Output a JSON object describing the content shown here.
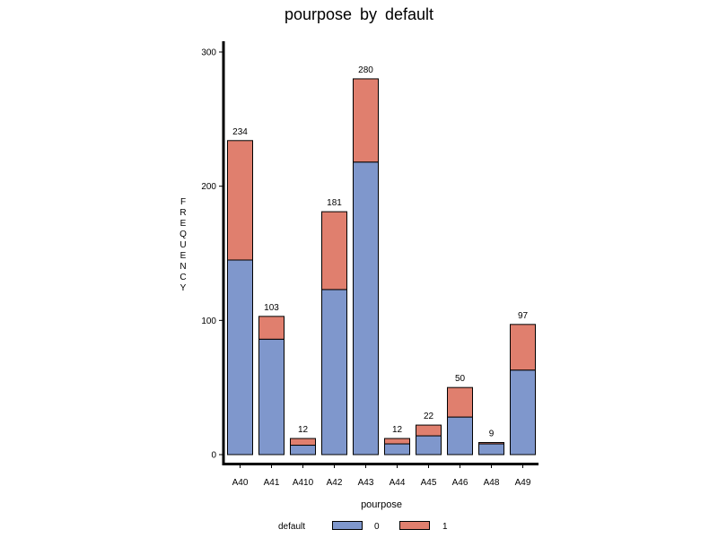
{
  "chart_data": {
    "type": "bar",
    "stacked": true,
    "title": "pourpose by default",
    "xlabel": "pourpose",
    "ylabel": "FREQUENCY",
    "ylim": [
      0,
      300
    ],
    "yticks": [
      0,
      100,
      200,
      300
    ],
    "categories": [
      "A40",
      "A41",
      "A410",
      "A42",
      "A43",
      "A44",
      "A45",
      "A46",
      "A48",
      "A49"
    ],
    "series": [
      {
        "name": "0",
        "color": "#7f97cc",
        "values": [
          145,
          86,
          7,
          123,
          218,
          8,
          14,
          28,
          8,
          63
        ]
      },
      {
        "name": "1",
        "color": "#e07f6e",
        "values": [
          89,
          17,
          5,
          58,
          62,
          4,
          8,
          22,
          1,
          34
        ]
      }
    ],
    "totals": [
      234,
      103,
      12,
      181,
      280,
      12,
      22,
      50,
      9,
      97
    ],
    "legend": {
      "title": "default",
      "position": "bottom"
    },
    "grid": false
  }
}
